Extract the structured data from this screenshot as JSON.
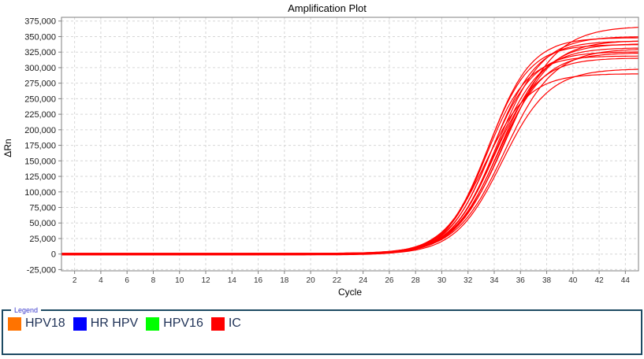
{
  "window": {
    "background": "#FFFFFF"
  },
  "chart_data": {
    "type": "line",
    "title": "Amplification Plot",
    "xlabel": "Cycle",
    "ylabel": "ΔRn",
    "xlim": [
      1,
      45
    ],
    "ylim": [
      -27000,
      381000
    ],
    "x_ticks": [
      2,
      4,
      6,
      8,
      10,
      12,
      14,
      16,
      18,
      20,
      22,
      24,
      26,
      28,
      30,
      32,
      34,
      36,
      38,
      40,
      42,
      44
    ],
    "y_ticks": [
      -25000,
      0,
      25000,
      50000,
      75000,
      100000,
      125000,
      150000,
      175000,
      200000,
      225000,
      250000,
      275000,
      300000,
      325000,
      350000,
      375000
    ],
    "grid": true,
    "gridline_color": "#d6d6d6",
    "frame_color": "#808080",
    "line_color": "#FF0000",
    "series_label": "IC",
    "curve_model": "value(cycle) = baseline + plateau / (1 + exp(-slope*(cycle-midpoint)))",
    "series": [
      {
        "name": "IC",
        "plateau": 366000,
        "midpoint": 34.9,
        "slope": 0.52,
        "baseline": 800
      },
      {
        "name": "IC",
        "plateau": 351000,
        "midpoint": 34.2,
        "slope": 0.58,
        "baseline": -600
      },
      {
        "name": "IC",
        "plateau": 348000,
        "midpoint": 33.6,
        "slope": 0.62,
        "baseline": 300
      },
      {
        "name": "IC",
        "plateau": 345000,
        "midpoint": 34.6,
        "slope": 0.55,
        "baseline": -1100
      },
      {
        "name": "IC",
        "plateau": 342000,
        "midpoint": 33.9,
        "slope": 0.6,
        "baseline": 900
      },
      {
        "name": "IC",
        "plateau": 339000,
        "midpoint": 34.4,
        "slope": 0.57,
        "baseline": -300
      },
      {
        "name": "IC",
        "plateau": 336000,
        "midpoint": 33.5,
        "slope": 0.63,
        "baseline": 1200
      },
      {
        "name": "IC",
        "plateau": 333000,
        "midpoint": 34.1,
        "slope": 0.58,
        "baseline": -900
      },
      {
        "name": "IC",
        "plateau": 330000,
        "midpoint": 34.8,
        "slope": 0.54,
        "baseline": 500
      },
      {
        "name": "IC",
        "plateau": 327000,
        "midpoint": 33.7,
        "slope": 0.61,
        "baseline": -1400
      },
      {
        "name": "IC",
        "plateau": 323000,
        "midpoint": 34.3,
        "slope": 0.57,
        "baseline": 1000
      },
      {
        "name": "IC",
        "plateau": 319000,
        "midpoint": 33.4,
        "slope": 0.64,
        "baseline": -200
      },
      {
        "name": "IC",
        "plateau": 315000,
        "midpoint": 34.0,
        "slope": 0.59,
        "baseline": 600
      },
      {
        "name": "IC",
        "plateau": 299000,
        "midpoint": 34.6,
        "slope": 0.56,
        "baseline": -800
      },
      {
        "name": "IC",
        "plateau": 290000,
        "midpoint": 33.3,
        "slope": 0.6,
        "baseline": 200
      }
    ]
  },
  "legend": {
    "title": "Legend",
    "border_color": "#1d4a63",
    "title_color": "#3a3acc",
    "text_color": "#1f3257",
    "items": [
      {
        "label": "HPV18",
        "color": "#FF7300"
      },
      {
        "label": "HR HPV",
        "color": "#0000FF"
      },
      {
        "label": "HPV16",
        "color": "#00FF00"
      },
      {
        "label": "IC",
        "color": "#FF0000"
      }
    ]
  }
}
